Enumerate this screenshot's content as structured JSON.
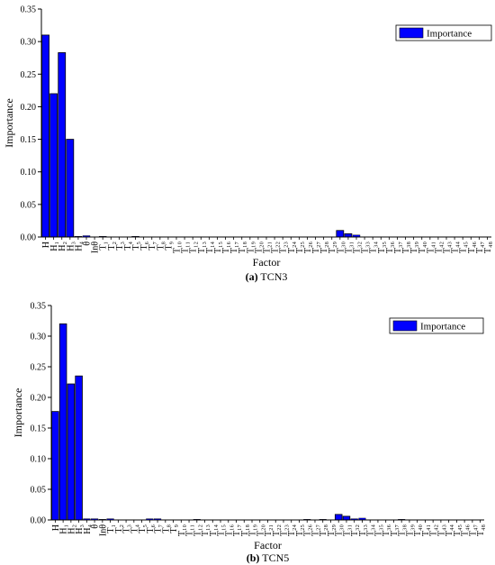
{
  "colors": {
    "bar": "#0000ff",
    "bar_edge": "#000000",
    "axis": "#000000"
  },
  "chart_data": [
    {
      "type": "bar",
      "caption_letter": "(a)",
      "caption_name": "TCN3",
      "xlabel": "Factor",
      "ylabel": "Importance",
      "ylim": [
        0,
        0.35
      ],
      "yticks": [
        "0.00",
        "0.05",
        "0.10",
        "0.15",
        "0.20",
        "0.25",
        "0.30",
        "0.35"
      ],
      "legend": "Importance",
      "legend_position": "top-right",
      "categories": [
        "H",
        "H₁",
        "H₂",
        "H₃",
        "H₄",
        "θ",
        "Inθ",
        "T₁",
        "T₂",
        "T₃",
        "T₄",
        "T₅",
        "T₆",
        "T₇",
        "T₈",
        "T₉",
        "T₁₀",
        "T₁₁",
        "T₁₂",
        "T₁₃",
        "T₁₄",
        "T₁₅",
        "T₁₆",
        "T₁₇",
        "T₁₈",
        "T₁₉",
        "T₂₀",
        "T₂₁",
        "T₂₂",
        "T₂₃",
        "T₂₄",
        "T₂₅",
        "T₂₆",
        "T₂₇",
        "T₂₈",
        "T₂₉",
        "T₃₀",
        "T₃₁",
        "T₃₂",
        "T₃₃",
        "T₃₄",
        "T₃₅",
        "T₃₆",
        "T₃₇",
        "T₃₈",
        "T₃₉",
        "T₄₀",
        "T₄₁",
        "T₄₂",
        "T₄₃",
        "T₄₄",
        "T₄₅",
        "T₄₆",
        "T₄₇",
        "T₄₈"
      ],
      "values": [
        0.31,
        0.22,
        0.283,
        0.15,
        0.001,
        0.002,
        0,
        0.001,
        0,
        0,
        0,
        0.001,
        0,
        0,
        0,
        0,
        0,
        0,
        0,
        0,
        0,
        0,
        0,
        0,
        0,
        0,
        0,
        0,
        0,
        0,
        0,
        0,
        0,
        0,
        0,
        0,
        0.01,
        0.005,
        0.003,
        0,
        0,
        0,
        0,
        0,
        0,
        0,
        0,
        0,
        0,
        0,
        0,
        0,
        0,
        0,
        0
      ]
    },
    {
      "type": "bar",
      "caption_letter": "(b)",
      "caption_name": "TCN5",
      "xlabel": "Factor",
      "ylabel": "Importance",
      "ylim": [
        0,
        0.35
      ],
      "yticks": [
        "0.00",
        "0.05",
        "0.10",
        "0.15",
        "0.20",
        "0.25",
        "0.30",
        "0.35"
      ],
      "legend": "Importance",
      "legend_position": "top-right",
      "categories": [
        "H",
        "H₁",
        "H₂",
        "H₃",
        "H₄",
        "θ",
        "Inθ",
        "T₁",
        "T₂",
        "T₃",
        "T₄",
        "T₅",
        "T₆",
        "T₇",
        "T₈",
        "T₉",
        "T₁₀",
        "T₁₁",
        "T₁₂",
        "T₁₃",
        "T₁₄",
        "T₁₅",
        "T₁₆",
        "T₁₇",
        "T₁₈",
        "T₁₉",
        "T₂₀",
        "T₂₁",
        "T₂₂",
        "T₂₃",
        "T₂₄",
        "T₂₅",
        "T₂₆",
        "T₂₇",
        "T₂₈",
        "T₂₉",
        "T₃₀",
        "T₃₁",
        "T₃₂",
        "T₃₃",
        "T₃₄",
        "T₃₅",
        "T₃₆",
        "T₃₇",
        "T₃₈",
        "T₃₉",
        "T₄₀",
        "T₄₁",
        "T₄₂",
        "T₄₃",
        "T₄₄",
        "T₄₅",
        "T₄₆",
        "T₄₇",
        "T₄₈"
      ],
      "values": [
        0.177,
        0.32,
        0.222,
        0.235,
        0.002,
        0.002,
        0.001,
        0.002,
        0,
        0,
        0,
        0,
        0.002,
        0.002,
        0,
        0,
        0,
        0,
        0.001,
        0,
        0,
        0,
        0,
        0,
        0,
        0,
        0,
        0,
        0,
        0,
        0,
        0,
        0.001,
        0,
        0.001,
        0,
        0.009,
        0.006,
        0.002,
        0.003,
        0,
        0,
        0,
        0,
        0.001,
        0,
        0,
        0,
        0,
        0,
        0,
        0,
        0,
        0,
        0
      ]
    }
  ]
}
